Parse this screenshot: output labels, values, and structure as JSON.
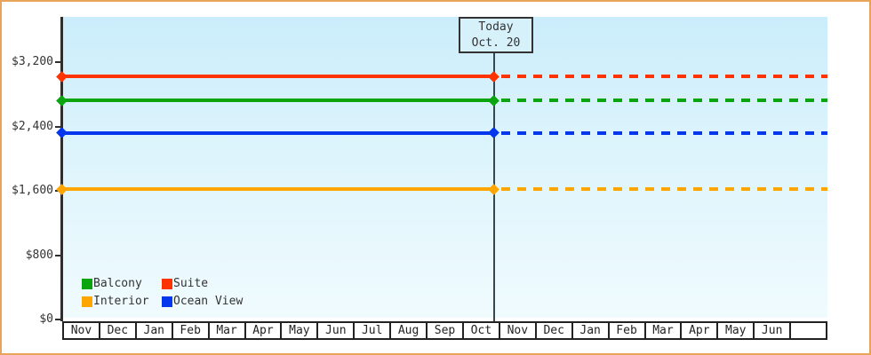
{
  "window": {
    "frame_border_color": "#E9A45C",
    "background_color": "#FFFFFF"
  },
  "palette": {
    "axis_color": "#2E2E2E",
    "today_line_color": "#37474F",
    "text_color": "#333333",
    "plot_bg_top": "#CBEDFB",
    "plot_bg_bottom": "#F0FBFE",
    "today_box_fill": "#D7F1FB"
  },
  "chart_data": {
    "type": "line",
    "title": "",
    "description": "Flat cabin-price lines per category; solid history up to today marker, dotted projection after",
    "categories": [
      "Nov",
      "Dec",
      "Jan",
      "Feb",
      "Mar",
      "Apr",
      "May",
      "Jun",
      "Jul",
      "Aug",
      "Sep",
      "Oct",
      "Nov",
      "Dec",
      "Jan",
      "Feb",
      "Mar",
      "Apr",
      "May",
      "Jun",
      ""
    ],
    "y_axis": {
      "tick_labels": [
        "$0",
        "$800",
        "$1,600",
        "$2,400",
        "$3,200"
      ],
      "tick_values": [
        0,
        800,
        1600,
        2400,
        3200
      ],
      "ylim": [
        0,
        3700
      ],
      "grid": false
    },
    "series": [
      {
        "name": "Balcony",
        "color": "#0AA40F",
        "value": 2700
      },
      {
        "name": "Suite",
        "color": "#FF3300",
        "value": 3000
      },
      {
        "name": "Interior",
        "color": "#FFA500",
        "value": 1600
      },
      {
        "name": "Ocean View",
        "color": "#0436EE",
        "value": 2300
      }
    ],
    "today_marker": {
      "line1": "Today",
      "line2": "Oct. 20",
      "category_index": 11
    },
    "legend": {
      "position": "bottom-left",
      "entries": [
        "Balcony",
        "Suite",
        "Interior",
        "Ocean View"
      ]
    }
  }
}
